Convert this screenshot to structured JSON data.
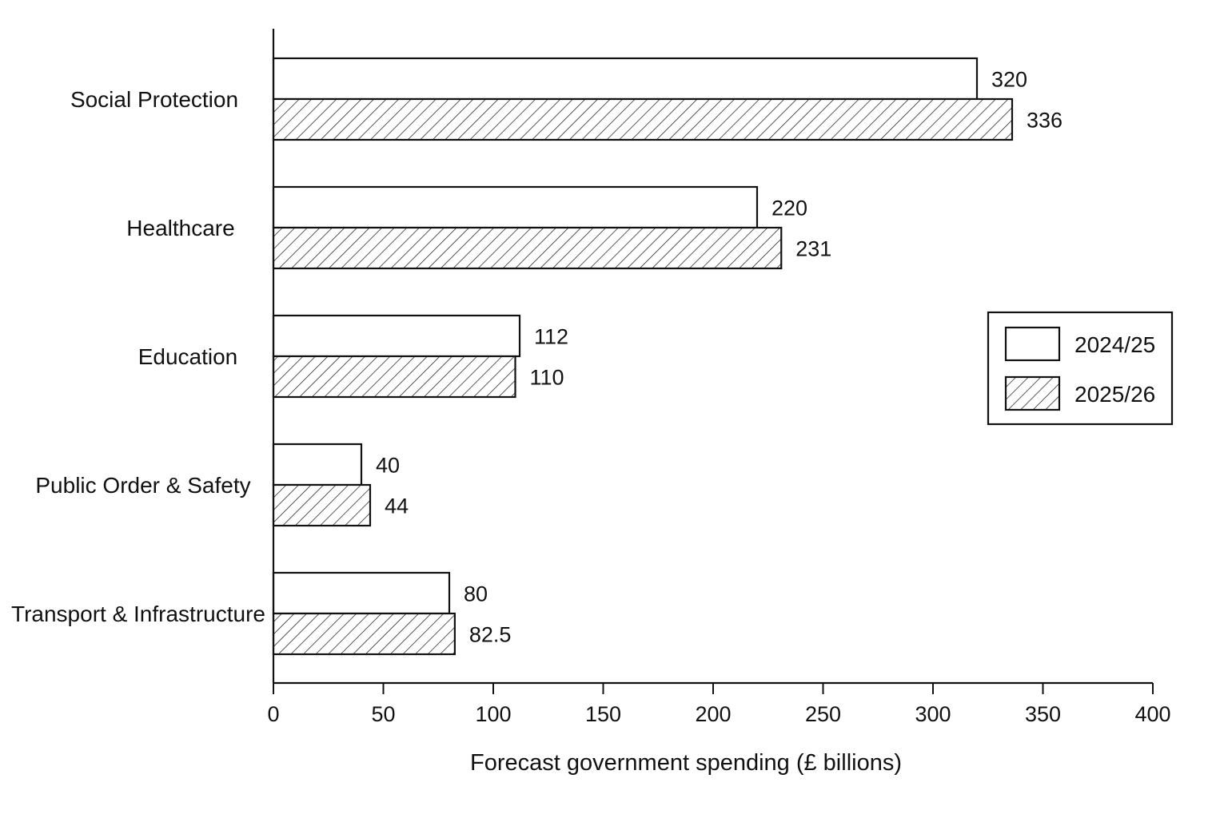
{
  "chart_data": {
    "type": "bar",
    "orientation": "horizontal",
    "categories": [
      "Social Protection",
      "Healthcare",
      "Education",
      "Public Order & Safety",
      "Transport & Infrastructure"
    ],
    "series": [
      {
        "name": "2024/25",
        "values": [
          320,
          220,
          112,
          40,
          80
        ],
        "labels": [
          "320",
          "220",
          "112",
          "40",
          "80"
        ],
        "fill": "none"
      },
      {
        "name": "2025/26",
        "values": [
          336,
          231,
          110,
          44,
          82.5
        ],
        "labels": [
          "336",
          "231",
          "110",
          "44",
          "82.5"
        ],
        "fill": "diagonal-hatch"
      }
    ],
    "xlabel": "Forecast government spending (£ billions)",
    "ylabel": "",
    "title": "",
    "xlim": [
      0,
      400
    ],
    "xticks": [
      0,
      50,
      100,
      150,
      200,
      250,
      300,
      350,
      400
    ],
    "grid": false,
    "legend_position": "right",
    "colors": {
      "stroke": "#111111",
      "background": "#ffffff",
      "bar_fill_2024": "#ffffff",
      "hatch": "#111111"
    }
  }
}
